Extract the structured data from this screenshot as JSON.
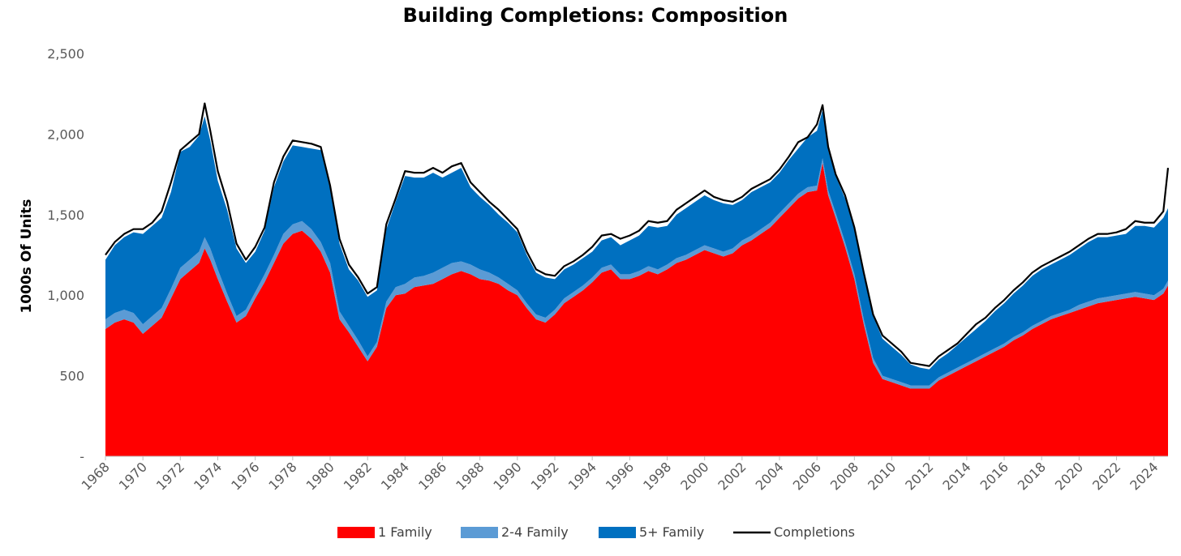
{
  "chart_data": {
    "type": "area",
    "title": "Building Completions: Composition",
    "xlabel": "",
    "ylabel": "1000s Of Units",
    "ylim": [
      0,
      2500
    ],
    "xlim": [
      1968.0,
      2024.75
    ],
    "y_ticks": [
      0,
      500,
      1000,
      1500,
      2000,
      2500
    ],
    "y_tick_labels": [
      "-",
      "500",
      "1,000",
      "1,500",
      "2,000",
      "2,500"
    ],
    "x_ticks": [
      1968,
      1970,
      1972,
      1974,
      1976,
      1978,
      1980,
      1982,
      1984,
      1986,
      1988,
      1990,
      1992,
      1994,
      1996,
      1998,
      2000,
      2002,
      2004,
      2006,
      2008,
      2010,
      2012,
      2014,
      2016,
      2018,
      2020,
      2022,
      2024
    ],
    "x_tick_labels": [
      "1968",
      "1970",
      "1972",
      "1974",
      "1976",
      "1978",
      "1980",
      "1982",
      "1984",
      "1986",
      "1988",
      "1990",
      "1992",
      "1994",
      "1996",
      "1998",
      "2000",
      "2002",
      "2004",
      "2006",
      "2008",
      "2010",
      "2012",
      "2014",
      "2016",
      "2018",
      "2020",
      "2022",
      "2024"
    ],
    "stacked": true,
    "grid": false,
    "legend_position": "bottom",
    "x": [
      1968.0,
      1968.5,
      1969.0,
      1969.5,
      1970.0,
      1970.5,
      1971.0,
      1971.5,
      1972.0,
      1972.5,
      1973.0,
      1973.3,
      1973.6,
      1974.0,
      1974.5,
      1975.0,
      1975.5,
      1976.0,
      1976.5,
      1977.0,
      1977.5,
      1978.0,
      1978.5,
      1979.0,
      1979.5,
      1980.0,
      1980.5,
      1981.0,
      1981.5,
      1982.0,
      1982.5,
      1983.0,
      1983.5,
      1984.0,
      1984.5,
      1985.0,
      1985.5,
      1986.0,
      1986.5,
      1987.0,
      1987.5,
      1988.0,
      1988.5,
      1989.0,
      1989.5,
      1990.0,
      1990.5,
      1991.0,
      1991.5,
      1992.0,
      1992.5,
      1993.0,
      1993.5,
      1994.0,
      1994.5,
      1995.0,
      1995.5,
      1996.0,
      1996.5,
      1997.0,
      1997.5,
      1998.0,
      1998.5,
      1999.0,
      1999.5,
      2000.0,
      2000.5,
      2001.0,
      2001.5,
      2002.0,
      2002.5,
      2003.0,
      2003.5,
      2004.0,
      2004.5,
      2005.0,
      2005.5,
      2006.0,
      2006.3,
      2006.6,
      2007.0,
      2007.5,
      2008.0,
      2008.5,
      2009.0,
      2009.5,
      2010.0,
      2010.5,
      2011.0,
      2011.5,
      2012.0,
      2012.5,
      2013.0,
      2013.5,
      2014.0,
      2014.5,
      2015.0,
      2015.5,
      2016.0,
      2016.5,
      2017.0,
      2017.5,
      2018.0,
      2018.5,
      2019.0,
      2019.5,
      2020.0,
      2020.5,
      2021.0,
      2021.5,
      2022.0,
      2022.5,
      2023.0,
      2023.5,
      2024.0,
      2024.5,
      2024.75
    ],
    "series": [
      {
        "name": "1 Family",
        "color": "#ff0000",
        "values": [
          790,
          830,
          850,
          830,
          760,
          810,
          860,
          980,
          1100,
          1150,
          1200,
          1290,
          1220,
          1100,
          960,
          830,
          870,
          980,
          1080,
          1200,
          1320,
          1380,
          1400,
          1350,
          1270,
          1140,
          850,
          770,
          680,
          590,
          680,
          920,
          1000,
          1010,
          1050,
          1060,
          1070,
          1100,
          1130,
          1150,
          1130,
          1100,
          1090,
          1070,
          1030,
          1000,
          920,
          850,
          830,
          880,
          950,
          990,
          1030,
          1080,
          1140,
          1160,
          1100,
          1100,
          1120,
          1150,
          1130,
          1160,
          1200,
          1220,
          1250,
          1280,
          1260,
          1240,
          1260,
          1310,
          1340,
          1380,
          1420,
          1480,
          1540,
          1600,
          1640,
          1650,
          1820,
          1620,
          1480,
          1300,
          1100,
          820,
          580,
          480,
          460,
          440,
          420,
          420,
          420,
          470,
          500,
          530,
          560,
          590,
          620,
          650,
          680,
          720,
          750,
          790,
          820,
          850,
          870,
          890,
          910,
          930,
          950,
          960,
          970,
          980,
          990,
          980,
          970,
          1010,
          1060
        ]
      },
      {
        "name": "2-4 Family",
        "color": "#5b9bd5",
        "values": [
          60,
          60,
          60,
          60,
          60,
          60,
          60,
          60,
          70,
          70,
          70,
          70,
          70,
          60,
          50,
          40,
          40,
          40,
          50,
          50,
          60,
          60,
          60,
          60,
          60,
          60,
          50,
          40,
          40,
          30,
          30,
          40,
          50,
          60,
          60,
          60,
          70,
          70,
          70,
          60,
          60,
          60,
          50,
          40,
          40,
          30,
          30,
          30,
          30,
          30,
          30,
          30,
          30,
          30,
          30,
          30,
          30,
          30,
          30,
          30,
          30,
          30,
          30,
          30,
          30,
          30,
          30,
          30,
          30,
          30,
          30,
          30,
          30,
          30,
          30,
          30,
          30,
          30,
          30,
          30,
          30,
          30,
          30,
          30,
          30,
          20,
          20,
          20,
          20,
          20,
          20,
          20,
          20,
          20,
          20,
          20,
          20,
          20,
          20,
          20,
          20,
          20,
          20,
          20,
          20,
          20,
          30,
          30,
          30,
          30,
          30,
          30,
          30,
          30,
          30,
          30,
          30
        ]
      },
      {
        "name": "5+ Family",
        "color": "#0070c0",
        "values": [
          370,
          420,
          450,
          500,
          560,
          560,
          560,
          600,
          720,
          700,
          720,
          750,
          670,
          550,
          520,
          420,
          290,
          250,
          270,
          420,
          450,
          490,
          460,
          500,
          570,
          460,
          420,
          350,
          370,
          370,
          320,
          450,
          530,
          670,
          620,
          610,
          620,
          560,
          560,
          580,
          480,
          450,
          420,
          390,
          380,
          360,
          300,
          260,
          250,
          190,
          180,
          170,
          170,
          160,
          170,
          170,
          180,
          210,
          220,
          250,
          260,
          240,
          270,
          290,
          300,
          310,
          300,
          300,
          270,
          250,
          270,
          260,
          250,
          250,
          270,
          280,
          310,
          340,
          300,
          250,
          230,
          270,
          280,
          270,
          260,
          230,
          200,
          170,
          130,
          110,
          100,
          110,
          120,
          140,
          160,
          180,
          200,
          230,
          250,
          270,
          290,
          310,
          320,
          320,
          330,
          340,
          350,
          370,
          380,
          370,
          370,
          370,
          410,
          420,
          420,
          440,
          450
        ]
      }
    ],
    "line_series": [
      {
        "name": "Completions",
        "color": "#000000",
        "values": [
          1250,
          1330,
          1380,
          1410,
          1410,
          1450,
          1520,
          1700,
          1900,
          1950,
          2000,
          2190,
          2020,
          1770,
          1580,
          1320,
          1220,
          1300,
          1420,
          1700,
          1860,
          1960,
          1950,
          1940,
          1920,
          1680,
          1350,
          1190,
          1110,
          1010,
          1050,
          1440,
          1600,
          1770,
          1760,
          1760,
          1790,
          1760,
          1800,
          1820,
          1700,
          1640,
          1580,
          1530,
          1470,
          1410,
          1270,
          1160,
          1130,
          1120,
          1180,
          1210,
          1250,
          1300,
          1370,
          1380,
          1350,
          1370,
          1400,
          1460,
          1450,
          1460,
          1530,
          1570,
          1610,
          1650,
          1610,
          1590,
          1580,
          1610,
          1660,
          1690,
          1720,
          1780,
          1860,
          1950,
          1980,
          2060,
          2180,
          1920,
          1750,
          1620,
          1420,
          1140,
          880,
          750,
          700,
          650,
          580,
          570,
          560,
          620,
          660,
          700,
          760,
          820,
          860,
          920,
          970,
          1030,
          1080,
          1140,
          1180,
          1210,
          1240,
          1270,
          1310,
          1350,
          1380,
          1380,
          1390,
          1410,
          1460,
          1450,
          1450,
          1520,
          1790
        ]
      }
    ],
    "legend": [
      {
        "label": "1 Family",
        "kind": "swatch",
        "color": "#ff0000"
      },
      {
        "label": "2-4 Family",
        "kind": "swatch",
        "color": "#5b9bd5"
      },
      {
        "label": "5+ Family",
        "kind": "swatch",
        "color": "#0070c0"
      },
      {
        "label": "Completions",
        "kind": "line",
        "color": "#000000"
      }
    ]
  }
}
